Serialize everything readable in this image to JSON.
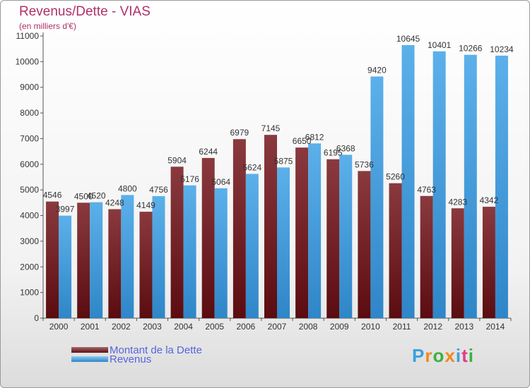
{
  "header": {
    "title": "Revenus/Dette - VIAS",
    "subtitle": "(en milliers d'€)"
  },
  "legend": {
    "debt_label": "Montant de la Dette",
    "revenue_label": "Revenus"
  },
  "logo": {
    "letters": [
      "P",
      "r",
      "o",
      "x",
      "i",
      "t",
      "i"
    ],
    "colors": [
      "#3aa0e0",
      "#f08a1c",
      "#3cb043",
      "#f08a1c",
      "#3aa0e0",
      "#e33b8a",
      "#3cb043"
    ]
  },
  "colors": {
    "debt": "#7a2a2e",
    "revenue": "#4aa3e0",
    "title": "#b0306a",
    "legend_text": "#5566dd"
  },
  "chart_data": {
    "type": "bar",
    "categories": [
      "2000",
      "2001",
      "2002",
      "2003",
      "2004",
      "2005",
      "2006",
      "2007",
      "2008",
      "2009",
      "2010",
      "2011",
      "2012",
      "2013",
      "2014"
    ],
    "series": [
      {
        "name": "Montant de la Dette",
        "values": [
          4546,
          4500,
          4248,
          4149,
          5904,
          6244,
          6979,
          7145,
          6650,
          6195,
          5736,
          5260,
          4763,
          4283,
          4342
        ],
        "labels": [
          "4546",
          "4500",
          "4248",
          "4149",
          "5904",
          "6244",
          "6979",
          "7145",
          "6650",
          "6195",
          "5736",
          "5260",
          "4763",
          "4283",
          "4342"
        ]
      },
      {
        "name": "Revenus",
        "values": [
          3997,
          4520,
          4800,
          4756,
          5176,
          5064,
          5624,
          5875,
          6812,
          6368,
          9420,
          10645,
          10401,
          10266,
          10234
        ],
        "labels": [
          "3997",
          "4520",
          "4800",
          "4756",
          "5176",
          "5064",
          "5624",
          "5875",
          "6812",
          "6368",
          "9420",
          "10645",
          "10401",
          "10266",
          "10234"
        ]
      }
    ],
    "yticks": [
      0,
      1000,
      2000,
      3000,
      4000,
      5000,
      6000,
      7000,
      8000,
      9000,
      10000,
      11000
    ],
    "ylim": [
      0,
      11000
    ],
    "grid": false,
    "legend_position": "bottom-left"
  }
}
